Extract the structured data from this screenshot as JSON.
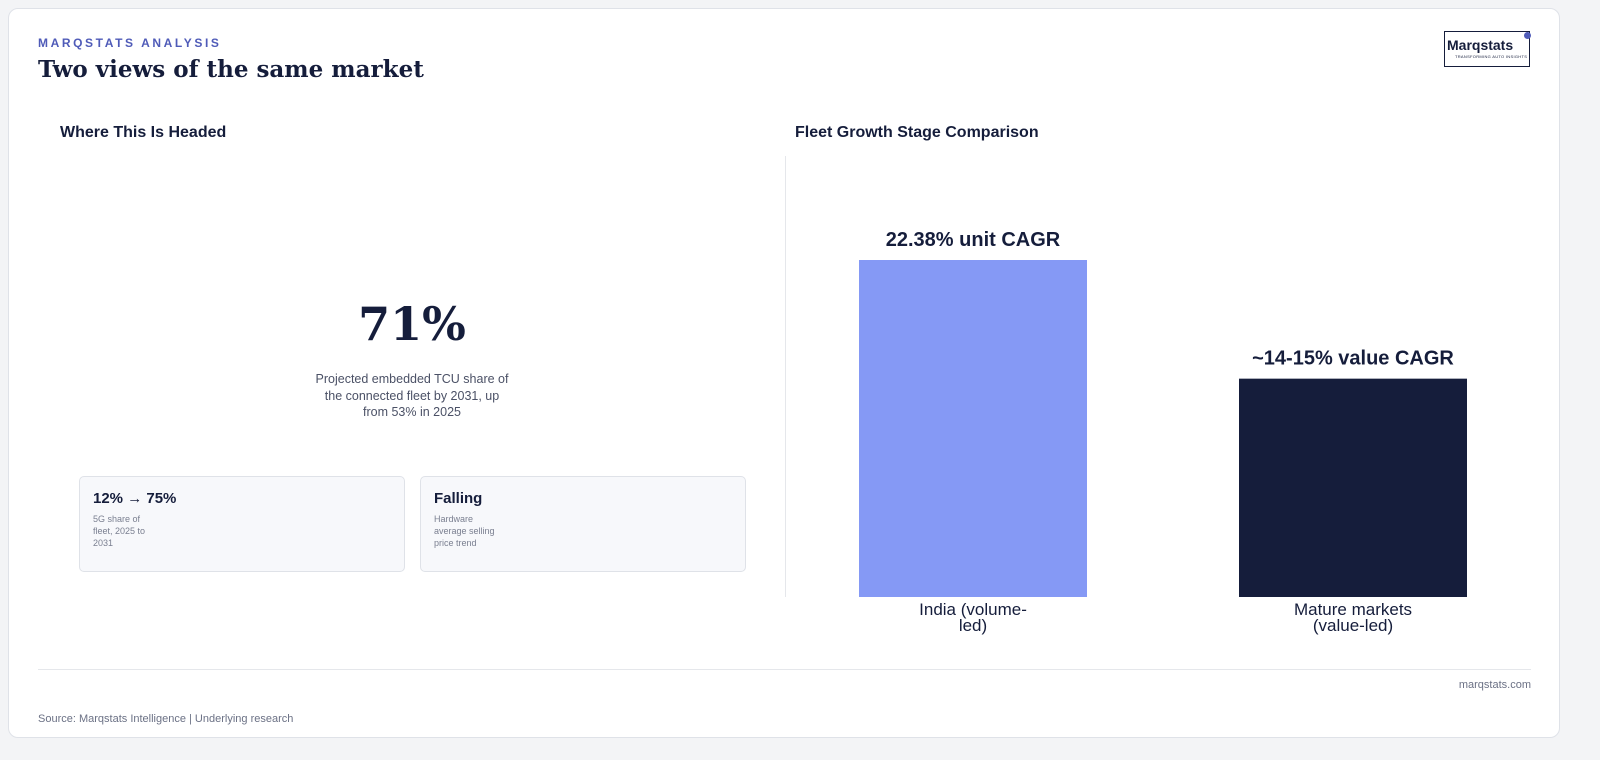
{
  "header": {
    "kicker": "MARQSTATS ANALYSIS",
    "title": "Two views of the same market",
    "logo": "Marqstats",
    "logo_tagline": "TRANSFORMING AUTO INSIGHTS"
  },
  "left_panel": {
    "title": "Where This Is Headed",
    "stat": "71%",
    "stat_caption": "Projected embedded TCU share of the connected fleet by 2031, up from 53% in 2025",
    "cards": [
      {
        "title": "12% → 75%",
        "text": "5G share of fleet, 2025 to 2031"
      },
      {
        "title": "Falling",
        "text": "Hardware average selling price trend"
      }
    ]
  },
  "chart_data": {
    "type": "bar",
    "title": "Fleet Growth Stage Comparison",
    "categories": [
      "India (volume-led)",
      "Mature markets (value-led)"
    ],
    "values": [
      22.38,
      14.5
    ],
    "value_labels": [
      "22.38% unit CAGR",
      "~14-15% value CAGR"
    ],
    "colors": [
      "#8599f5",
      "#151d3b"
    ]
  },
  "footer": {
    "site": "marqstats.com",
    "source": "Source: Marqstats Intelligence | Underlying research"
  }
}
